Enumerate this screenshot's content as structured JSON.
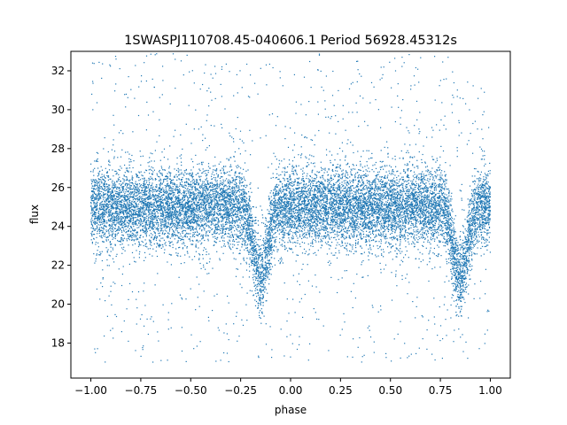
{
  "chart_data": {
    "type": "scatter",
    "title": "1SWASPJ110708.45-040606.1 Period 56928.45312s",
    "xlabel": "phase",
    "ylabel": "flux",
    "xlim": [
      -1.1,
      1.1
    ],
    "ylim": [
      16.2,
      33.0
    ],
    "xticks": [
      -1.0,
      -0.75,
      -0.5,
      -0.25,
      0.0,
      0.25,
      0.5,
      0.75,
      1.0
    ],
    "xtick_labels": [
      "−1.00",
      "−0.75",
      "−0.50",
      "−0.25",
      "0.00",
      "0.25",
      "0.50",
      "0.75",
      "1.00"
    ],
    "yticks": [
      18,
      20,
      22,
      24,
      26,
      28,
      30,
      32
    ],
    "ytick_labels": [
      "18",
      "20",
      "22",
      "24",
      "26",
      "28",
      "30",
      "32"
    ],
    "grid": false,
    "point_color": "#1f77b4",
    "x_range": [
      -1.0,
      1.0
    ],
    "baseline_flux": 25.0,
    "band_sigma": 1.0,
    "flux_clip": [
      17.0,
      32.9
    ],
    "dips": [
      {
        "phase": -0.15,
        "depth": 3.6,
        "width": 0.035
      },
      {
        "phase": 0.85,
        "depth": 3.6,
        "width": 0.035
      }
    ]
  }
}
